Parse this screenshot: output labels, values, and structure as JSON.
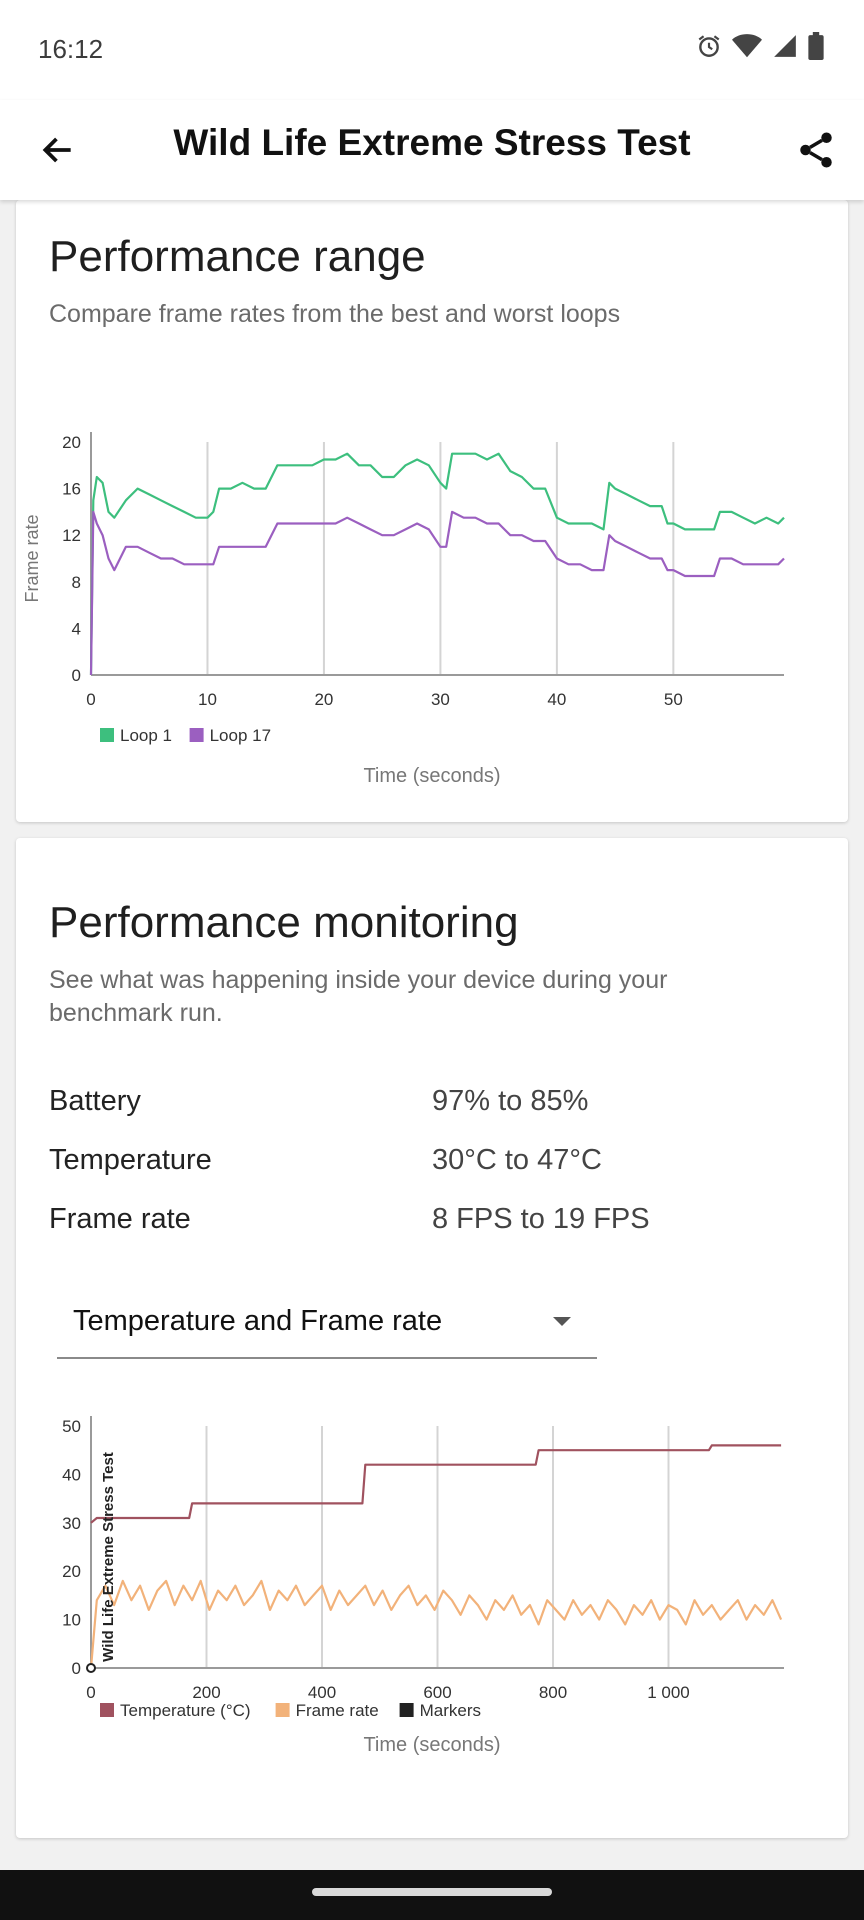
{
  "status_bar": {
    "time": "16:12",
    "icons": [
      "alarm-icon",
      "wifi-icon",
      "signal-icon",
      "battery-icon"
    ]
  },
  "app_bar": {
    "title": "Wild Life Extreme Stress Test",
    "back_icon": "arrow-left-icon",
    "share_icon": "share-icon"
  },
  "performance_range": {
    "title": "Performance range",
    "subtitle": "Compare frame rates from the best and worst loops"
  },
  "performance_monitoring": {
    "title": "Performance monitoring",
    "subtitle": "See what was happening inside your device during your benchmark run.",
    "stats": [
      {
        "label": "Battery",
        "value": "97% to 85%"
      },
      {
        "label": "Temperature",
        "value": "30°C to 47°C"
      },
      {
        "label": "Frame rate",
        "value": "8 FPS to 19 FPS"
      }
    ],
    "dropdown": {
      "selected": "Temperature and Frame rate"
    }
  },
  "chart_data": [
    {
      "type": "line",
      "xlabel": "Time (seconds)",
      "ylabel": "Frame rate",
      "xlim": [
        0,
        59.5
      ],
      "ylim": [
        0,
        20
      ],
      "x_ticks": [
        "0",
        "10",
        "20",
        "30",
        "40",
        "50"
      ],
      "y_ticks": [
        "0",
        "4",
        "8",
        "12",
        "16",
        "20"
      ],
      "legend_position": "bottom-left",
      "series": [
        {
          "name": "Loop 1",
          "color": "#3dbf7e",
          "x": [
            0,
            0.2,
            0.5,
            1,
            1.5,
            2,
            3,
            4,
            5,
            6,
            7,
            8,
            9,
            10,
            10.5,
            11,
            12,
            13,
            14,
            15,
            16,
            17,
            18,
            19,
            20,
            21,
            22,
            23,
            24,
            25,
            26,
            27,
            28,
            29,
            30,
            30.5,
            31,
            32,
            33,
            34,
            35,
            36,
            37,
            38,
            39,
            40,
            41,
            42,
            43,
            44,
            44.5,
            45,
            46,
            47,
            48,
            49,
            49.5,
            50,
            51,
            52,
            53,
            53.5,
            54,
            55,
            56,
            57,
            58,
            59,
            59.5
          ],
          "y": [
            0,
            15,
            17,
            16.5,
            14,
            13.5,
            15,
            16,
            15.5,
            15,
            14.5,
            14,
            13.5,
            13.5,
            14,
            16,
            16,
            16.5,
            16,
            16,
            18,
            18,
            18,
            18,
            18.5,
            18.5,
            19,
            18,
            18,
            17,
            17,
            18,
            18.5,
            18,
            16.5,
            16,
            19,
            19,
            19,
            18.5,
            19,
            17.5,
            17,
            16,
            16,
            13.5,
            13,
            13,
            13,
            12.5,
            16.5,
            16,
            15.5,
            15,
            14.5,
            14.5,
            13,
            13,
            12.5,
            12.5,
            12.5,
            12.5,
            14,
            14,
            13.5,
            13,
            13.5,
            13,
            13.5
          ]
        },
        {
          "name": "Loop 17",
          "color": "#9b5fc0",
          "x": [
            0,
            0.2,
            0.5,
            1,
            1.5,
            2,
            3,
            4,
            5,
            6,
            7,
            8,
            9,
            10,
            10.5,
            11,
            12,
            13,
            14,
            15,
            16,
            17,
            18,
            19,
            20,
            21,
            22,
            23,
            24,
            25,
            26,
            27,
            28,
            29,
            30,
            30.5,
            31,
            32,
            33,
            34,
            35,
            36,
            37,
            38,
            39,
            40,
            41,
            42,
            43,
            44,
            44.5,
            45,
            46,
            47,
            48,
            49,
            49.5,
            50,
            51,
            52,
            53,
            53.5,
            54,
            55,
            56,
            57,
            58,
            59,
            59.5
          ],
          "y": [
            0,
            14,
            13,
            12,
            10,
            9,
            11,
            11,
            10.5,
            10,
            10,
            9.5,
            9.5,
            9.5,
            9.5,
            11,
            11,
            11,
            11,
            11,
            13,
            13,
            13,
            13,
            13,
            13,
            13.5,
            13,
            12.5,
            12,
            12,
            12.5,
            13,
            12.5,
            11,
            11,
            14,
            13.5,
            13.5,
            13,
            13,
            12,
            12,
            11.5,
            11.5,
            10,
            9.5,
            9.5,
            9,
            9,
            12,
            11.5,
            11,
            10.5,
            10,
            10,
            9,
            9,
            8.5,
            8.5,
            8.5,
            8.5,
            10,
            10,
            9.5,
            9.5,
            9.5,
            9.5,
            10
          ]
        }
      ]
    },
    {
      "type": "line",
      "xlabel": "Time (seconds)",
      "xlim": [
        0,
        1200
      ],
      "ylim": [
        0,
        50
      ],
      "x_ticks": [
        "0",
        "200",
        "400",
        "600",
        "800",
        "1 000"
      ],
      "y_ticks": [
        "0",
        "10",
        "20",
        "30",
        "40",
        "50"
      ],
      "marker_label": "Wild Life Extreme Stress Test",
      "legend_position": "bottom-left",
      "series": [
        {
          "name": "Temperature (°C)",
          "color": "#a0525f",
          "x": [
            0,
            10,
            170,
            175,
            470,
            475,
            770,
            775,
            1070,
            1075,
            1195
          ],
          "y": [
            30,
            31,
            31,
            34,
            34,
            42,
            42,
            45,
            45,
            46,
            46
          ]
        },
        {
          "name": "Frame rate",
          "color": "#f2b27a",
          "x": [
            0,
            10,
            25,
            40,
            55,
            70,
            85,
            100,
            115,
            130,
            145,
            160,
            175,
            190,
            205,
            220,
            235,
            250,
            265,
            280,
            295,
            310,
            325,
            340,
            355,
            370,
            385,
            400,
            415,
            430,
            445,
            460,
            475,
            490,
            505,
            520,
            535,
            550,
            565,
            580,
            595,
            610,
            625,
            640,
            655,
            670,
            685,
            700,
            715,
            730,
            745,
            760,
            775,
            790,
            805,
            820,
            835,
            850,
            865,
            880,
            895,
            910,
            925,
            940,
            955,
            970,
            985,
            1000,
            1015,
            1030,
            1045,
            1060,
            1075,
            1090,
            1105,
            1120,
            1135,
            1150,
            1165,
            1180,
            1195
          ],
          "y": [
            0,
            14,
            17,
            13,
            18,
            14,
            17,
            12,
            16,
            18,
            13,
            17,
            14,
            18,
            12,
            16,
            14,
            17,
            13,
            15,
            18,
            12,
            16,
            14,
            17,
            13,
            15,
            17,
            12,
            16,
            13,
            15,
            17,
            13,
            16,
            12,
            15,
            17,
            13,
            15,
            12,
            16,
            14,
            11,
            15,
            13,
            10,
            14,
            12,
            15,
            11,
            13,
            9,
            14,
            12,
            10,
            14,
            11,
            13,
            10,
            14,
            12,
            9,
            13,
            11,
            14,
            10,
            13,
            12,
            9,
            14,
            11,
            13,
            10,
            12,
            14,
            10,
            13,
            11,
            14,
            10
          ]
        },
        {
          "name": "Markers",
          "color": "#222222",
          "x": [],
          "y": []
        }
      ]
    }
  ]
}
